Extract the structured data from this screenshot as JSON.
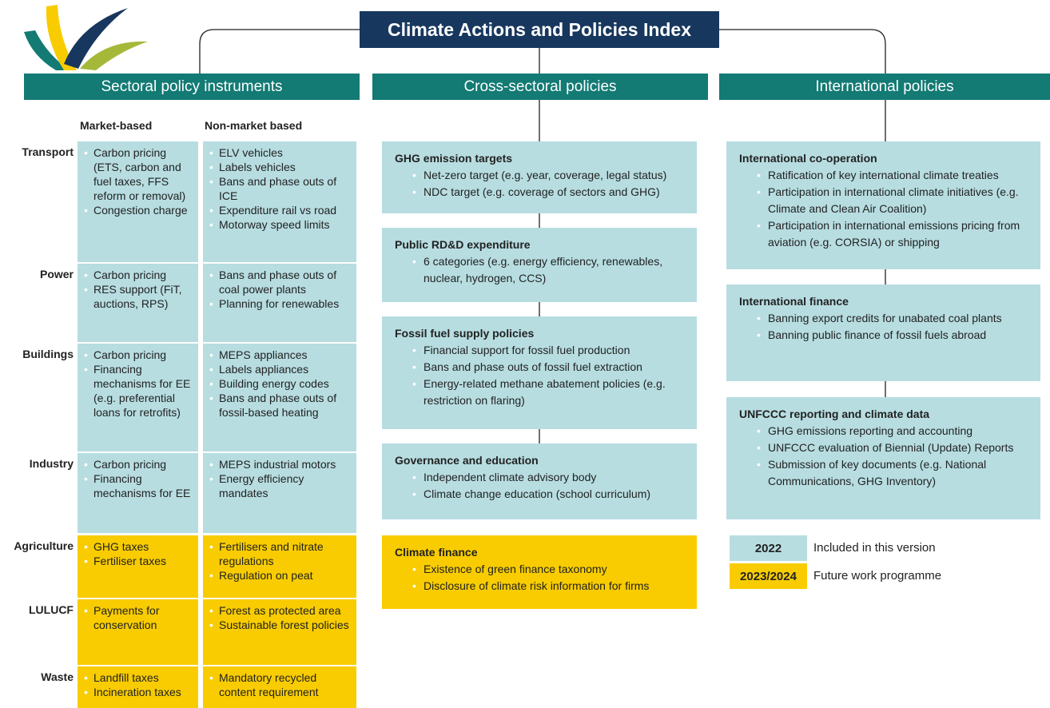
{
  "title": "Climate Actions and Policies Index",
  "columns": [
    "Sectoral policy instruments",
    "Cross-sectoral policies",
    "International policies"
  ],
  "sectoral": {
    "headers": [
      "Market-based",
      "Non-market based"
    ],
    "rows": [
      {
        "sector": "Transport",
        "market": [
          "Carbon pricing (ETS, carbon and fuel taxes, FFS reform or removal)",
          "Congestion charge"
        ],
        "non_market": [
          "ELV vehicles",
          "Labels vehicles",
          "Bans and phase outs of ICE",
          "Expenditure rail vs road",
          "Motorway speed limits"
        ]
      },
      {
        "sector": "Power",
        "market": [
          "Carbon pricing",
          "RES support (FiT, auctions, RPS)"
        ],
        "non_market": [
          "Bans and phase outs of coal power plants",
          "Planning for renewables"
        ]
      },
      {
        "sector": "Buildings",
        "market": [
          "Carbon pricing",
          "Financing mechanisms for EE (e.g. preferential loans for retrofits)"
        ],
        "non_market": [
          "MEPS appliances",
          "Labels appliances",
          "Building energy codes",
          "Bans and phase outs of fossil-based heating"
        ]
      },
      {
        "sector": "Industry",
        "market": [
          "Carbon pricing",
          "Financing mechanisms for EE"
        ],
        "non_market": [
          "MEPS industrial motors",
          "Energy efficiency mandates"
        ]
      },
      {
        "sector": "Agriculture",
        "market": [
          "GHG taxes",
          "Fertiliser taxes"
        ],
        "non_market": [
          "Fertilisers and nitrate regulations",
          "Regulation on peat"
        ]
      },
      {
        "sector": "LULUCF",
        "market": [
          "Payments for conservation"
        ],
        "non_market": [
          "Forest as protected area",
          "Sustainable forest policies"
        ]
      },
      {
        "sector": "Waste",
        "market": [
          "Landfill taxes",
          "Incineration taxes"
        ],
        "non_market": [
          "Mandatory recycled content requirement"
        ]
      }
    ]
  },
  "cross_sectoral": [
    {
      "title": "GHG emission targets",
      "items": [
        "Net-zero target (e.g. year, coverage, legal status)",
        "NDC target (e.g. coverage of sectors and GHG)"
      ]
    },
    {
      "title": "Public RD&D expenditure",
      "items": [
        "6 categories (e.g. energy efficiency, renewables, nuclear, hydrogen, CCS)"
      ]
    },
    {
      "title": "Fossil fuel supply policies",
      "items": [
        "Financial support for fossil fuel production",
        "Bans and phase outs of fossil fuel extraction",
        "Energy-related methane abatement policies (e.g. restriction on flaring)"
      ]
    },
    {
      "title": "Governance and education",
      "items": [
        "Independent climate advisory body",
        "Climate change education (school curriculum)"
      ]
    },
    {
      "title": "Climate finance",
      "items": [
        "Existence of green finance taxonomy",
        "Disclosure of climate risk information for firms"
      ]
    }
  ],
  "international": [
    {
      "title": "International co-operation",
      "items": [
        "Ratification of key international climate treaties",
        "Participation in international climate initiatives (e.g. Climate and Clean Air Coalition)",
        "Participation in international emissions pricing from aviation (e.g. CORSIA) or shipping"
      ]
    },
    {
      "title": "International finance",
      "items": [
        "Banning export credits for unabated coal plants",
        "Banning public finance of fossil fuels abroad"
      ]
    },
    {
      "title": "UNFCCC reporting and climate data",
      "items": [
        "GHG emissions reporting and accounting",
        "UNFCCC evaluation of Biennial (Update) Reports",
        "Submission of key documents (e.g. National Communications, GHG Inventory)"
      ]
    }
  ],
  "legend": [
    {
      "label": "2022",
      "text": "Included in this version"
    },
    {
      "label": "2023/2024",
      "text": "Future work programme"
    }
  ]
}
